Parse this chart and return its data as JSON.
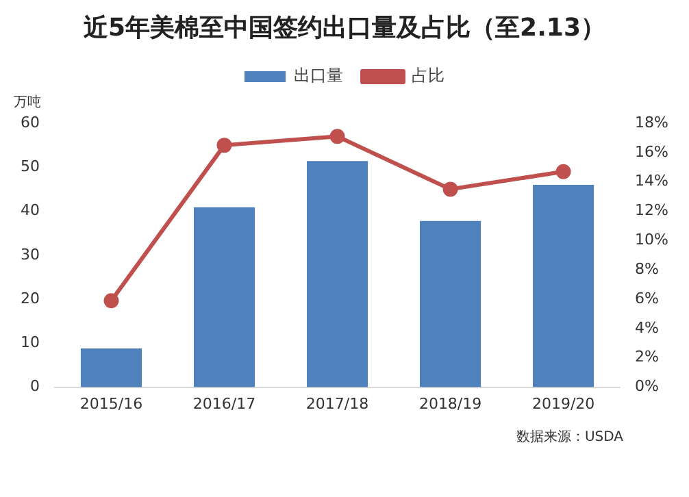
{
  "chart_data": {
    "type": "bar",
    "title": "近5年美棉至中国签约出口量及占比（至2.13）",
    "ylabel": "万吨",
    "categories": [
      "2015/16",
      "2016/17",
      "2017/18",
      "2018/19",
      "2019/20"
    ],
    "series": [
      {
        "name": "出口量",
        "color": "#4f81bd",
        "values": [
          8.8,
          40.9,
          51.4,
          37.8,
          46
        ]
      },
      {
        "name": "占比",
        "type": "line",
        "axis": "y2",
        "color": "#c0504d",
        "values": [
          5.9,
          16.5,
          17.1,
          13.5,
          14.7
        ]
      }
    ],
    "ylim": [
      0,
      60
    ],
    "yticks": [
      0,
      10,
      20,
      30,
      40,
      50,
      60
    ],
    "y2lim": [
      0,
      18
    ],
    "y2ticks": [
      {
        "value": 0,
        "label": "0%"
      },
      {
        "value": 2,
        "label": "2%"
      },
      {
        "value": 4,
        "label": "4%"
      },
      {
        "value": 6,
        "label": "6%"
      },
      {
        "value": 8,
        "label": "8%"
      },
      {
        "value": 10,
        "label": "10%"
      },
      {
        "value": 12,
        "label": "12%"
      },
      {
        "value": 14,
        "label": "14%"
      },
      {
        "value": 16,
        "label": "16%"
      },
      {
        "value": 18,
        "label": "18%"
      }
    ],
    "grid": false,
    "legend": "top",
    "marker": "circle",
    "annotations": [
      "数据来源：USDA"
    ]
  }
}
